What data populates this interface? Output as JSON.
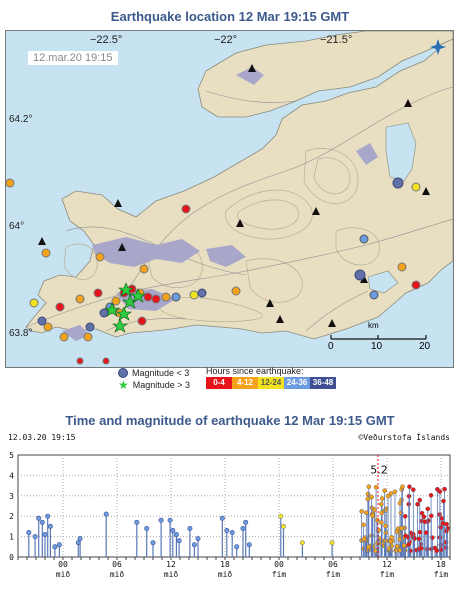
{
  "map": {
    "title": "Earthquake location   12 Mar 19:15 GMT",
    "timestamp": "12.mar.20  19:15",
    "lon_labels": [
      "−22.5°",
      "−22°",
      "−21.5°"
    ],
    "lat_labels": [
      "64.2°",
      "64°",
      "63.8°"
    ],
    "scale": {
      "unit": "km",
      "ticks": [
        "0",
        "10",
        "20"
      ]
    }
  },
  "legend": {
    "small": "Magnitude < 3",
    "large": "Magnitude > 3",
    "hours_title": "Hours since earthquake:",
    "hours": [
      {
        "label": "0-4",
        "color": "#e8141c"
      },
      {
        "label": "4-12",
        "color": "#f5a21b"
      },
      {
        "label": "12-24",
        "color": "#f2e320"
      },
      {
        "label": "24-36",
        "color": "#6b9be0"
      },
      {
        "label": "36-48",
        "color": "#3f4f92"
      }
    ]
  },
  "chart": {
    "title": "Time and magnitude of earthquake   12 Mar 19:15 GMT",
    "left_stamp": "12.03.20 19:15",
    "right_stamp": "©Veðurstofa Íslands",
    "peak_label": "5.2"
  },
  "chart_data": {
    "type": "scatter",
    "y_ticks": [
      "5",
      "4",
      "3",
      "2",
      "1",
      "0"
    ],
    "ylim": [
      0,
      5
    ],
    "x_hours": [
      0,
      48
    ],
    "x_tick_labels": [
      {
        "hour": 5,
        "label": "00",
        "day": "mið"
      },
      {
        "hour": 11,
        "label": "06",
        "day": "mið"
      },
      {
        "hour": 17,
        "label": "12",
        "day": "mið"
      },
      {
        "hour": 23,
        "label": "18",
        "day": "mið"
      },
      {
        "hour": 29,
        "label": "00",
        "day": "fim"
      },
      {
        "hour": 35,
        "label": "06",
        "day": "fim"
      },
      {
        "hour": 41,
        "label": "12",
        "day": "fim"
      },
      {
        "hour": 47,
        "label": "18",
        "day": "fim"
      }
    ],
    "peak": {
      "hour": 40,
      "magnitude": 5.2
    },
    "quakes": [
      [
        1.2,
        1.2
      ],
      [
        1.9,
        1.0
      ],
      [
        2.3,
        1.9
      ],
      [
        2.7,
        1.7
      ],
      [
        3.0,
        1.1
      ],
      [
        3.3,
        2.0
      ],
      [
        3.6,
        1.5
      ],
      [
        4.1,
        0.5
      ],
      [
        4.6,
        0.6
      ],
      [
        6.7,
        0.7
      ],
      [
        6.9,
        0.9
      ],
      [
        9.8,
        2.1
      ],
      [
        13.2,
        1.7
      ],
      [
        14.3,
        1.4
      ],
      [
        15.0,
        0.7
      ],
      [
        15.9,
        1.8
      ],
      [
        16.9,
        1.8
      ],
      [
        17.2,
        1.3
      ],
      [
        17.6,
        1.1
      ],
      [
        17.9,
        0.8
      ],
      [
        19.1,
        1.4
      ],
      [
        19.6,
        0.6
      ],
      [
        20.0,
        0.9
      ],
      [
        22.7,
        1.9
      ],
      [
        23.2,
        1.3
      ],
      [
        23.8,
        1.2
      ],
      [
        24.3,
        0.5
      ],
      [
        25.0,
        1.4
      ],
      [
        25.3,
        1.7
      ],
      [
        25.7,
        0.6
      ],
      [
        29.2,
        2.0
      ],
      [
        29.5,
        1.5
      ],
      [
        31.6,
        0.7
      ],
      [
        34.9,
        0.7
      ]
    ],
    "swarm_hours": [
      38.1,
      48
    ],
    "swarm_count": 140,
    "swarm_series_colors": [
      "#f5a21b",
      "#e8141c"
    ]
  }
}
